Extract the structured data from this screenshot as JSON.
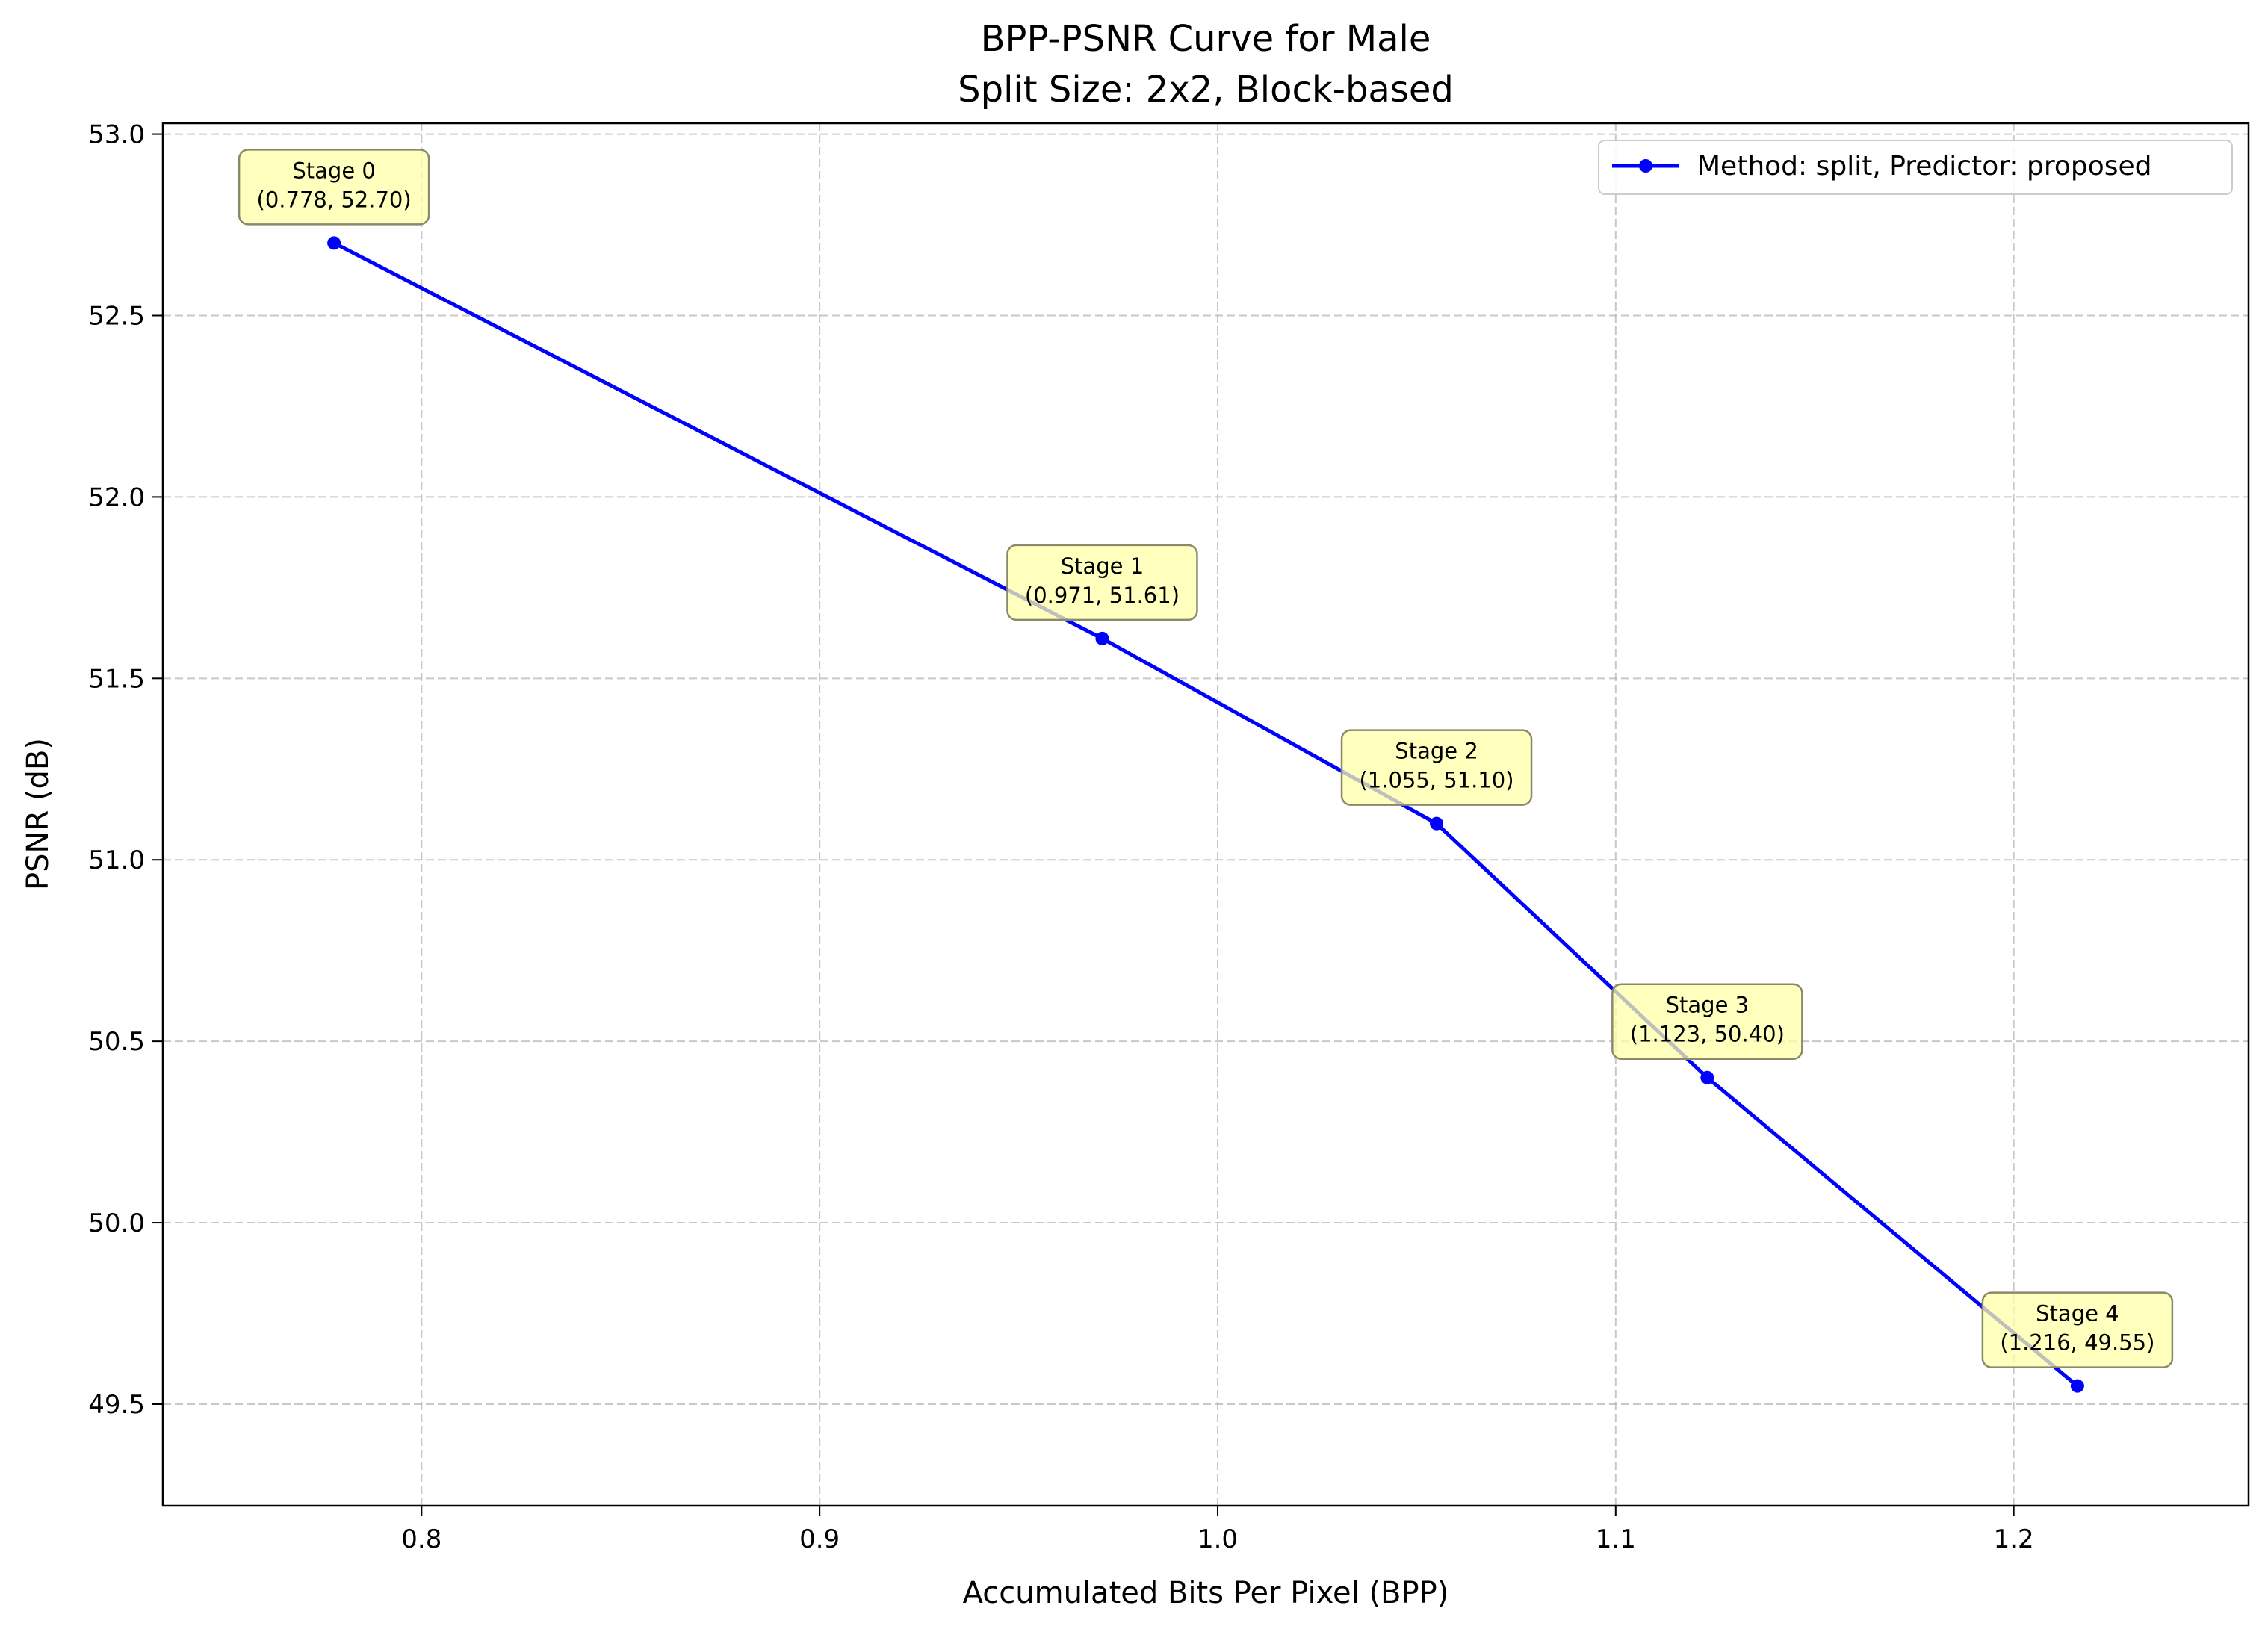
{
  "chart_data": {
    "type": "line",
    "title": "BPP-PSNR Curve for Male",
    "subtitle": "Split Size: 2x2, Block-based",
    "xlabel": "Accumulated Bits Per Pixel (BPP)",
    "ylabel": "PSNR (dB)",
    "xlim": [
      0.735,
      1.259
    ],
    "ylim": [
      49.22,
      53.03
    ],
    "x_ticks": [
      0.8,
      0.9,
      1.0,
      1.1,
      1.2
    ],
    "x_tick_labels": [
      "0.8",
      "0.9",
      "1.0",
      "1.1",
      "1.2"
    ],
    "y_ticks": [
      49.5,
      50.0,
      50.5,
      51.0,
      51.5,
      52.0,
      52.5,
      53.0
    ],
    "y_tick_labels": [
      "49.5",
      "50.0",
      "50.5",
      "51.0",
      "51.5",
      "52.0",
      "52.5",
      "53.0"
    ],
    "grid": true,
    "legend_position": "top-right",
    "series": [
      {
        "name": "Method: split, Predictor: proposed",
        "color": "#0000ff",
        "x": [
          0.778,
          0.971,
          1.055,
          1.123,
          1.216
        ],
        "y": [
          52.7,
          51.61,
          51.1,
          50.4,
          49.55
        ]
      }
    ],
    "annotations": [
      {
        "stage": "Stage 0",
        "coords": "(0.778, 52.70)"
      },
      {
        "stage": "Stage 1",
        "coords": "(0.971, 51.61)"
      },
      {
        "stage": "Stage 2",
        "coords": "(1.055, 51.10)"
      },
      {
        "stage": "Stage 3",
        "coords": "(1.123, 50.40)"
      },
      {
        "stage": "Stage 4",
        "coords": "(1.216, 49.55)"
      }
    ],
    "annotation_color": "#ffffa8"
  }
}
